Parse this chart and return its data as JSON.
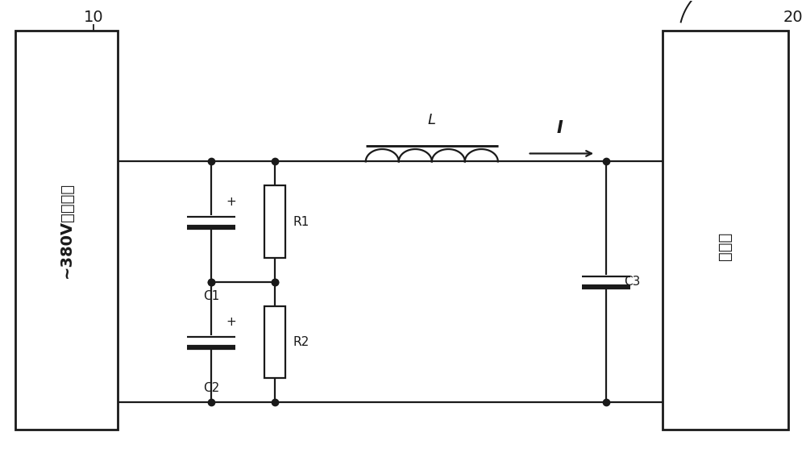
{
  "bg_color": "#ffffff",
  "line_color": "#1a1a1a",
  "line_width": 1.6,
  "fig_width": 10.0,
  "fig_height": 5.72,
  "label_10": "10",
  "label_20": "20",
  "label_left_box_text": "~380V网电整流",
  "label_right_box_text": "逃变器",
  "label_L": "L",
  "label_I": "I",
  "label_C1": "C1",
  "label_C2": "C2",
  "label_C3": "C3",
  "label_R1": "R1",
  "label_R2": "R2",
  "label_plus": "+"
}
